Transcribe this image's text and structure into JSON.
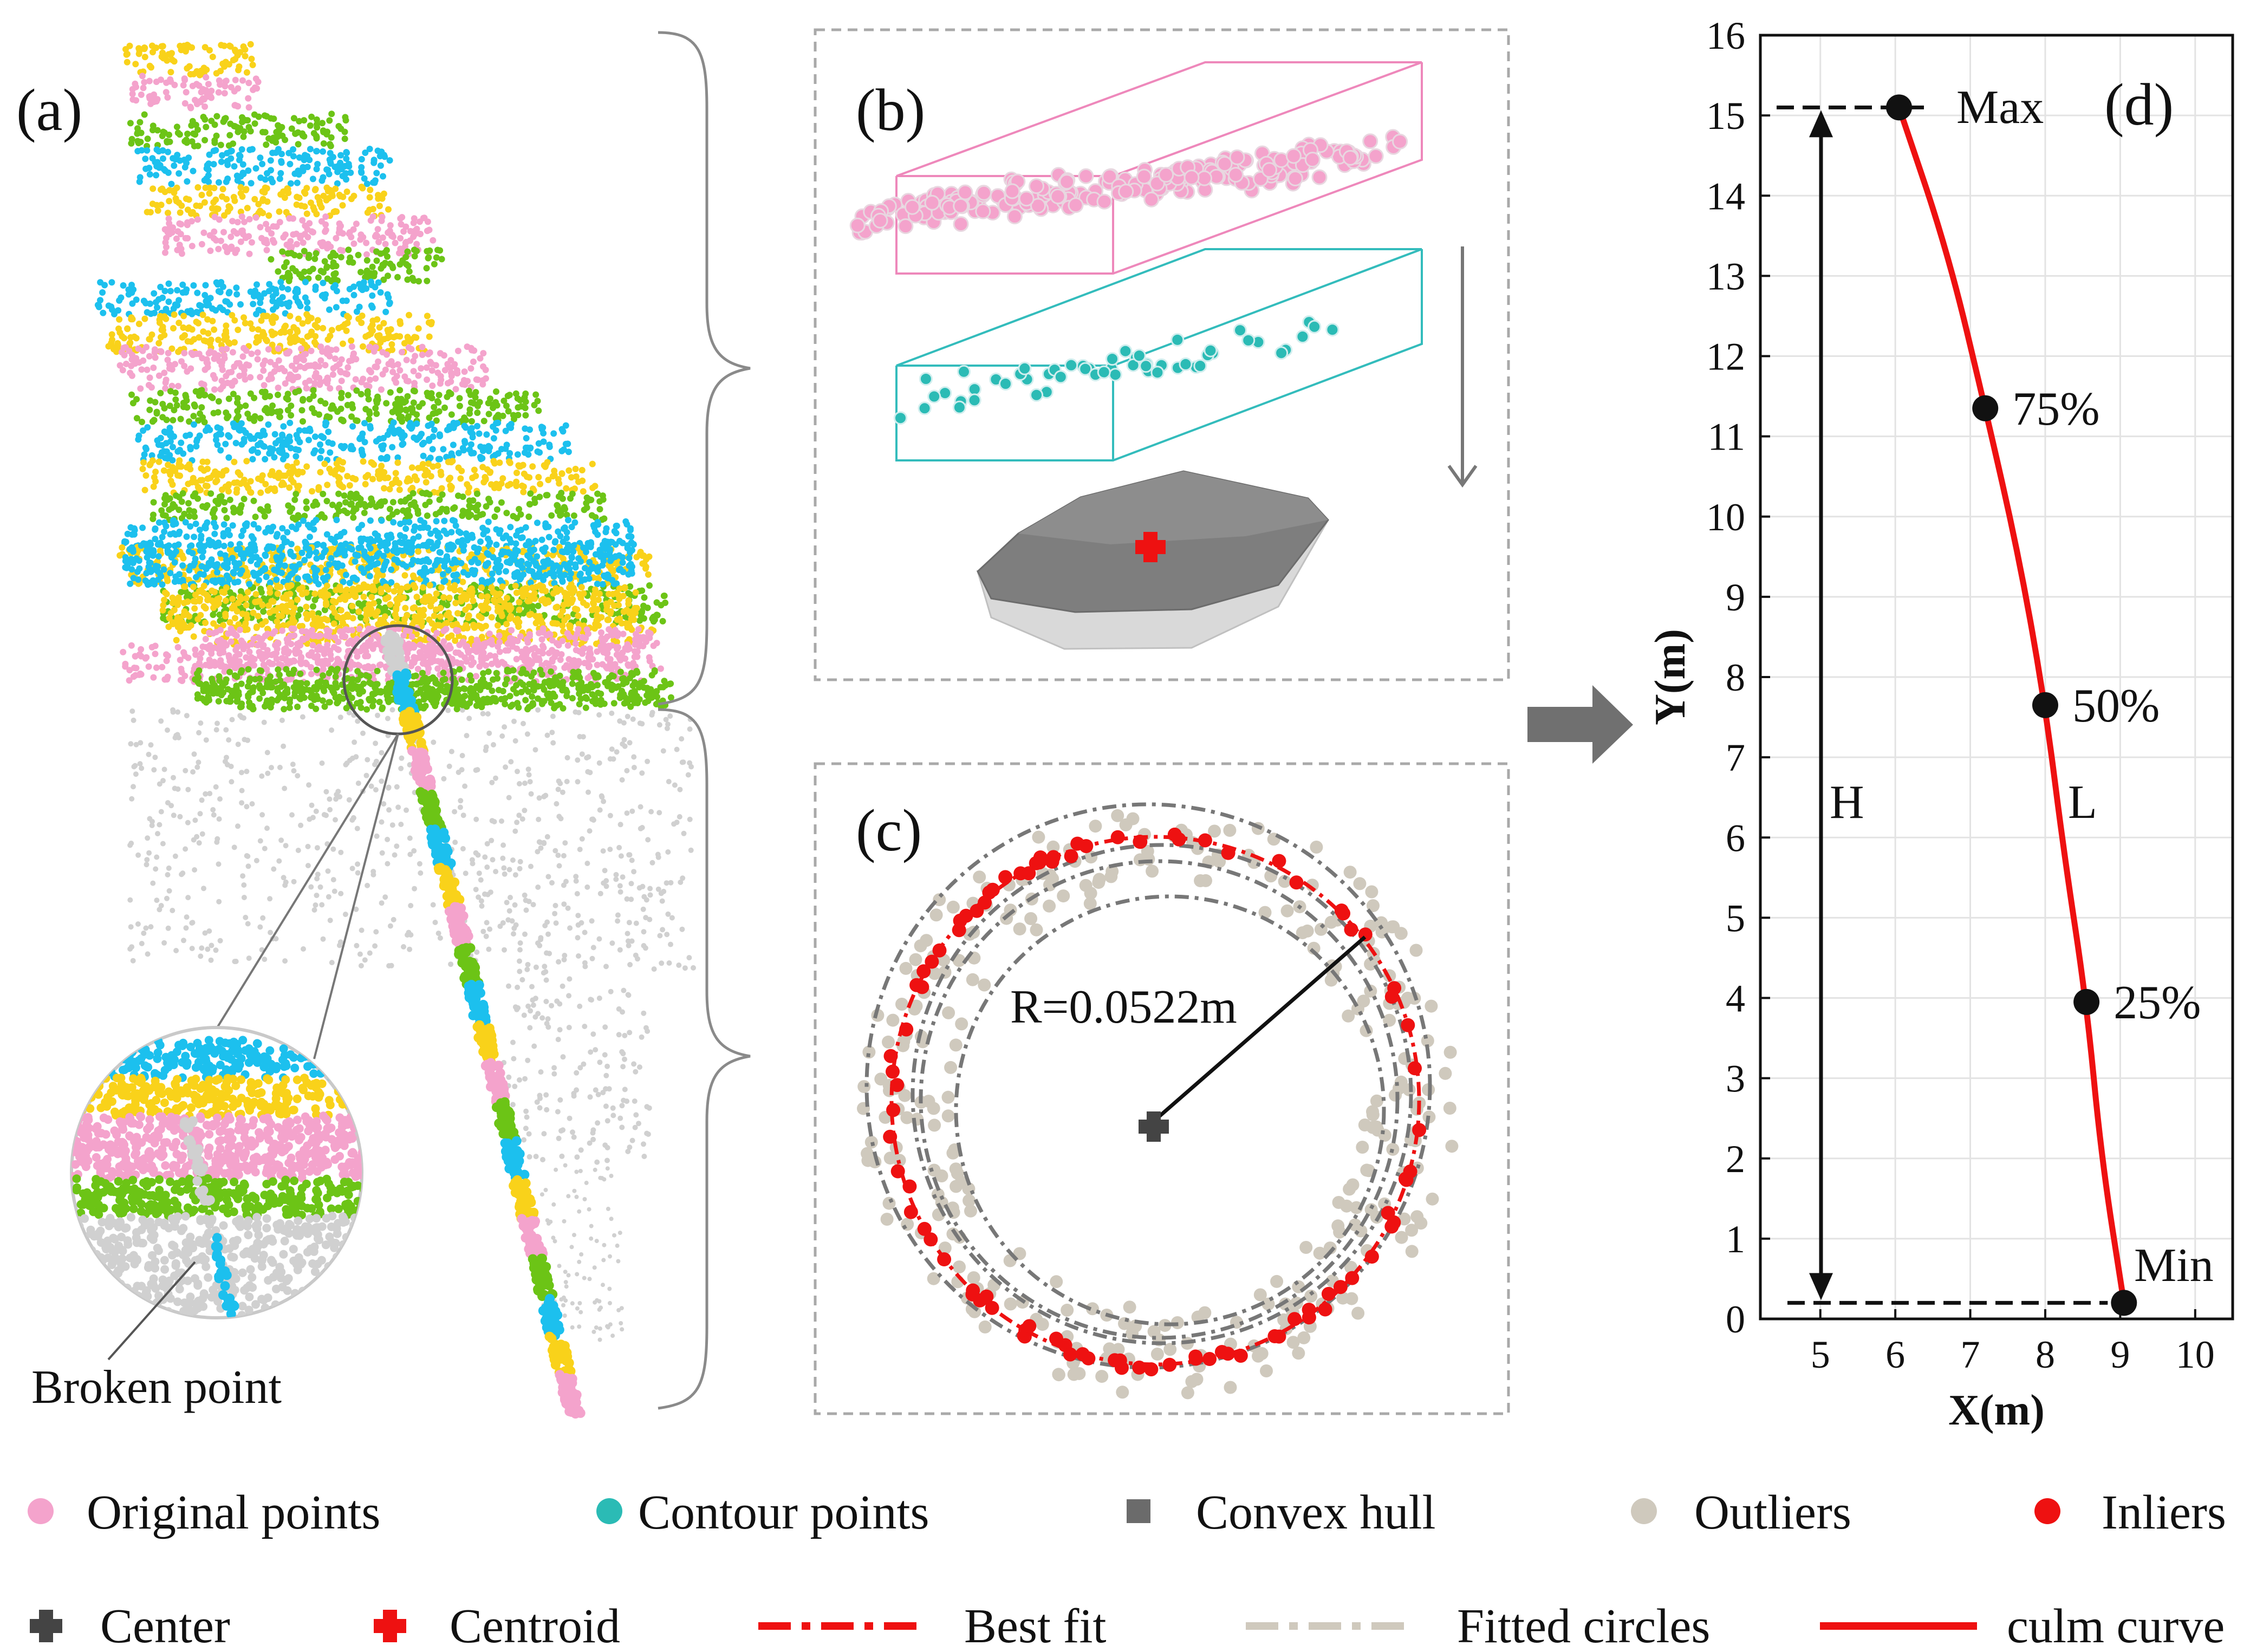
{
  "colors": {
    "pink": "#f4a3cc",
    "cyan": "#1cc0ee",
    "yellow": "#f9d21a",
    "green": "#6cc416",
    "grey": "#d0d0d0",
    "contour": "#2bbbb5",
    "hull": "#808080",
    "outlier": "#cfc9bd",
    "inlier": "#ee1111",
    "curve": "#ee1111"
  },
  "panel_a": {
    "label": "(a)",
    "broken_point_label": "Broken point"
  },
  "panel_b": {
    "label": "(b)"
  },
  "panel_c": {
    "label": "(c)",
    "radius_label": "R=0.0522m"
  },
  "panel_d": {
    "label": "(d)",
    "max_label": "Max",
    "min_label": "Min",
    "h_label": "H",
    "l_label": "L"
  },
  "chart_data": {
    "type": "line",
    "title": "(d)",
    "xlabel": "X(m)",
    "ylabel": "Y(m)",
    "xlim": [
      4.2,
      10.5
    ],
    "ylim": [
      0,
      16
    ],
    "xticks": [
      5,
      6,
      7,
      8,
      9,
      10
    ],
    "yticks": [
      0,
      1,
      2,
      3,
      4,
      5,
      6,
      7,
      8,
      9,
      10,
      11,
      12,
      13,
      14,
      15,
      16
    ],
    "grid": true,
    "series": [
      {
        "name": "culm curve",
        "x": [
          9.05,
          8.75,
          8.55,
          8.25,
          8.0,
          7.65,
          7.2,
          6.7,
          6.05
        ],
        "y": [
          0.2,
          2.0,
          3.95,
          5.8,
          7.65,
          9.5,
          11.35,
          13.3,
          15.1
        ]
      }
    ],
    "points": [
      {
        "label": "Min",
        "x": 9.05,
        "y": 0.2
      },
      {
        "label": "25%",
        "x": 8.55,
        "y": 3.95
      },
      {
        "label": "50%",
        "x": 8.0,
        "y": 7.65
      },
      {
        "label": "75%",
        "x": 7.2,
        "y": 11.35
      },
      {
        "label": "Max",
        "x": 6.05,
        "y": 15.1
      }
    ]
  },
  "legend": {
    "row1": [
      {
        "label": "Original points",
        "marker": "dot",
        "color": "#f4a3cc"
      },
      {
        "label": "Contour points",
        "marker": "dot",
        "color": "#2bbbb5"
      },
      {
        "label": "Convex hull",
        "marker": "square",
        "color": "#6b6b6b"
      },
      {
        "label": "Outliers",
        "marker": "dot",
        "color": "#cfc9bd"
      },
      {
        "label": "Inliers",
        "marker": "dot",
        "color": "#ee1111"
      }
    ],
    "row2": [
      {
        "label": "Center",
        "marker": "plus",
        "color": "#444444"
      },
      {
        "label": "Centroid",
        "marker": "plus",
        "color": "#ee1111"
      },
      {
        "label": "Best fit",
        "marker": "dashdot",
        "color": "#ee1111"
      },
      {
        "label": "Fitted circles",
        "marker": "dashdot",
        "color": "#cfc9bd"
      },
      {
        "label": "culm curve",
        "marker": "solid",
        "color": "#ee1111"
      }
    ]
  }
}
